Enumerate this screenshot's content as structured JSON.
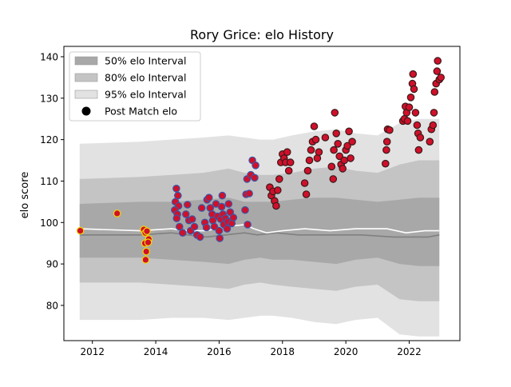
{
  "chart_data": {
    "type": "scatter",
    "title": "Rory Grice: elo History",
    "xlabel": "",
    "ylabel": "elo score",
    "xlim": [
      2011.1,
      2023.6
    ],
    "ylim": [
      71.5,
      142.5
    ],
    "x_ticks": [
      2012,
      2014,
      2016,
      2018,
      2020,
      2022
    ],
    "y_ticks": [
      80,
      90,
      100,
      110,
      120,
      130,
      140
    ],
    "grid": false,
    "legend": {
      "placement": "top-left",
      "entries": [
        "50% elo Interval",
        "80% elo Interval",
        "95% elo Interval",
        "Post Match elo"
      ]
    },
    "colors": {
      "band_50": "#a8a8a8",
      "band_80": "#c4c4c4",
      "band_95": "#e2e2e2",
      "median_line": "#808080",
      "mean_line": "#ffffff",
      "yellow_fill": "#d0102a",
      "yellow_edge": "#f2d600",
      "blue_fill": "#d0102a",
      "blue_edge": "#3a56a8",
      "dark_fill": "#d0102a",
      "dark_edge": "#3a1a1a"
    },
    "bands": {
      "x": [
        2011.6,
        2013.5,
        2014.5,
        2015.5,
        2016.3,
        2016.8,
        2017.3,
        2017.7,
        2018.3,
        2019.0,
        2019.7,
        2020.3,
        2021.0,
        2021.7,
        2022.3,
        2022.95
      ],
      "p95_upper": [
        119,
        119.5,
        120,
        120.5,
        121,
        120.5,
        120,
        120,
        121,
        122,
        122.5,
        121.5,
        121,
        124,
        125,
        125
      ],
      "p95_lower": [
        76.5,
        76.5,
        77,
        77,
        76.5,
        77,
        77.5,
        77.5,
        77,
        76,
        75.5,
        76.5,
        77,
        73,
        72.5,
        72.5
      ],
      "p80_upper": [
        110.5,
        111,
        111.5,
        112,
        113,
        112,
        111.5,
        111.5,
        112,
        113,
        113.5,
        112.5,
        112,
        114,
        115,
        115
      ],
      "p80_lower": [
        85.5,
        85.5,
        85,
        84.5,
        84,
        85,
        85.5,
        85,
        84.5,
        84,
        83.5,
        84.5,
        85,
        81.5,
        81,
        81
      ],
      "p50_upper": [
        104.5,
        105,
        105,
        105.5,
        106,
        105,
        105,
        105,
        105.5,
        106,
        106,
        105.5,
        105,
        105.5,
        106,
        106
      ],
      "p50_lower": [
        91.5,
        91.5,
        91,
        90.5,
        90,
        91,
        91.5,
        91,
        91,
        90.5,
        90,
        91,
        91.5,
        90,
        89.5,
        89.5
      ]
    },
    "median_line": {
      "x": [
        2011.6,
        2013.5,
        2014.5,
        2015.0,
        2015.6,
        2016.2,
        2016.8,
        2017.2,
        2017.8,
        2018.5,
        2019.5,
        2020.5,
        2021.5,
        2022.0,
        2022.6,
        2022.95
      ],
      "y": [
        97,
        97,
        97.5,
        97,
        96.5,
        97,
        97.5,
        97,
        97.5,
        97,
        97,
        97,
        96.5,
        96.5,
        96.5,
        97
      ]
    },
    "mean_line": {
      "x": [
        2011.6,
        2013.5,
        2014.5,
        2015.0,
        2015.6,
        2016.2,
        2016.8,
        2017.1,
        2017.5,
        2018.0,
        2018.7,
        2019.5,
        2020.3,
        2021.3,
        2021.9,
        2022.5,
        2022.95
      ],
      "y": [
        98.5,
        98,
        98.5,
        98,
        98,
        99,
        99.5,
        98.5,
        97.5,
        98,
        98.5,
        98,
        98.5,
        98.5,
        97.5,
        98,
        98
      ]
    },
    "series": [
      {
        "style": "yellow",
        "points": [
          [
            2011.62,
            98.0
          ],
          [
            2012.78,
            102.2
          ],
          [
            2013.62,
            98.3
          ],
          [
            2013.67,
            97.5
          ],
          [
            2013.72,
            97.9
          ],
          [
            2013.66,
            95.0
          ],
          [
            2013.7,
            93.0
          ],
          [
            2013.68,
            91.0
          ],
          [
            2013.78,
            96.0
          ],
          [
            2013.76,
            95.2
          ]
        ]
      },
      {
        "style": "blue",
        "points": [
          [
            2014.65,
            108.2
          ],
          [
            2014.7,
            106.5
          ],
          [
            2014.62,
            105.0
          ],
          [
            2014.72,
            104.0
          ],
          [
            2014.6,
            103.0
          ],
          [
            2014.68,
            102.0
          ],
          [
            2014.66,
            101.0
          ],
          [
            2014.75,
            99.0
          ],
          [
            2014.85,
            97.5
          ],
          [
            2014.95,
            102.0
          ],
          [
            2015.0,
            104.3
          ],
          [
            2015.05,
            100.5
          ],
          [
            2015.1,
            98.0
          ],
          [
            2015.15,
            100.8
          ],
          [
            2015.22,
            99.0
          ],
          [
            2015.3,
            97.0
          ],
          [
            2015.4,
            96.5
          ],
          [
            2015.45,
            103.5
          ],
          [
            2015.55,
            100.0
          ],
          [
            2015.6,
            98.8
          ],
          [
            2015.62,
            105.5
          ],
          [
            2015.68,
            106.0
          ],
          [
            2015.72,
            103.5
          ],
          [
            2015.78,
            102.0
          ],
          [
            2015.8,
            100.5
          ],
          [
            2015.85,
            99.0
          ],
          [
            2015.9,
            104.5
          ],
          [
            2015.95,
            101.5
          ],
          [
            2016.0,
            98.0
          ],
          [
            2016.02,
            96.2
          ],
          [
            2016.05,
            100.8
          ],
          [
            2016.08,
            103.8
          ],
          [
            2016.1,
            106.5
          ],
          [
            2016.12,
            102.0
          ],
          [
            2016.15,
            99.5
          ],
          [
            2016.2,
            101.0
          ],
          [
            2016.25,
            98.5
          ],
          [
            2016.28,
            100.2
          ],
          [
            2016.3,
            104.5
          ],
          [
            2016.35,
            102.5
          ],
          [
            2016.4,
            99.8
          ],
          [
            2016.45,
            101.2
          ],
          [
            2016.82,
            103.0
          ],
          [
            2016.85,
            106.8
          ],
          [
            2016.88,
            110.5
          ],
          [
            2016.9,
            99.5
          ],
          [
            2016.95,
            107.0
          ],
          [
            2017.0,
            111.5
          ],
          [
            2017.05,
            115.0
          ],
          [
            2017.12,
            110.8
          ],
          [
            2017.15,
            113.8
          ]
        ]
      },
      {
        "style": "dark",
        "points": [
          [
            2017.6,
            108.5
          ],
          [
            2017.65,
            106.5
          ],
          [
            2017.7,
            107.5
          ],
          [
            2017.75,
            105.2
          ],
          [
            2017.8,
            104.0
          ],
          [
            2017.85,
            107.8
          ],
          [
            2017.9,
            110.5
          ],
          [
            2017.95,
            114.5
          ],
          [
            2018.0,
            116.5
          ],
          [
            2018.05,
            115.5
          ],
          [
            2018.1,
            114.5
          ],
          [
            2018.15,
            117.0
          ],
          [
            2018.2,
            112.5
          ],
          [
            2018.25,
            114.5
          ],
          [
            2018.7,
            109.5
          ],
          [
            2018.75,
            106.8
          ],
          [
            2018.8,
            112.5
          ],
          [
            2018.85,
            115.0
          ],
          [
            2018.9,
            117.5
          ],
          [
            2018.95,
            119.5
          ],
          [
            2019.0,
            123.2
          ],
          [
            2019.05,
            120.0
          ],
          [
            2019.1,
            115.5
          ],
          [
            2019.15,
            117.0
          ],
          [
            2019.35,
            120.5
          ],
          [
            2019.55,
            113.5
          ],
          [
            2019.6,
            110.5
          ],
          [
            2019.62,
            117.5
          ],
          [
            2019.65,
            126.5
          ],
          [
            2019.7,
            121.5
          ],
          [
            2019.75,
            119.0
          ],
          [
            2019.8,
            116.0
          ],
          [
            2019.85,
            114.0
          ],
          [
            2019.9,
            113.0
          ],
          [
            2019.95,
            115.0
          ],
          [
            2020.0,
            117.5
          ],
          [
            2020.05,
            118.5
          ],
          [
            2020.1,
            122.0
          ],
          [
            2020.15,
            115.5
          ],
          [
            2020.2,
            119.5
          ],
          [
            2021.25,
            114.2
          ],
          [
            2021.28,
            117.5
          ],
          [
            2021.3,
            119.5
          ],
          [
            2021.32,
            122.5
          ],
          [
            2021.38,
            122.3
          ],
          [
            2021.8,
            124.5
          ],
          [
            2021.85,
            125.0
          ],
          [
            2021.88,
            128.0
          ],
          [
            2021.92,
            126.5
          ],
          [
            2021.95,
            124.5
          ],
          [
            2022.0,
            127.8
          ],
          [
            2022.05,
            130.2
          ],
          [
            2022.1,
            133.5
          ],
          [
            2022.12,
            135.8
          ],
          [
            2022.15,
            132.2
          ],
          [
            2022.2,
            126.5
          ],
          [
            2022.25,
            123.5
          ],
          [
            2022.28,
            121.5
          ],
          [
            2022.3,
            117.5
          ],
          [
            2022.35,
            120.5
          ],
          [
            2022.65,
            119.5
          ],
          [
            2022.7,
            122.5
          ],
          [
            2022.75,
            123.5
          ],
          [
            2022.78,
            126.5
          ],
          [
            2022.8,
            131.5
          ],
          [
            2022.85,
            133.5
          ],
          [
            2022.88,
            136.5
          ],
          [
            2022.9,
            139.0
          ],
          [
            2022.95,
            134.5
          ],
          [
            2023.0,
            135.0
          ]
        ]
      }
    ]
  }
}
